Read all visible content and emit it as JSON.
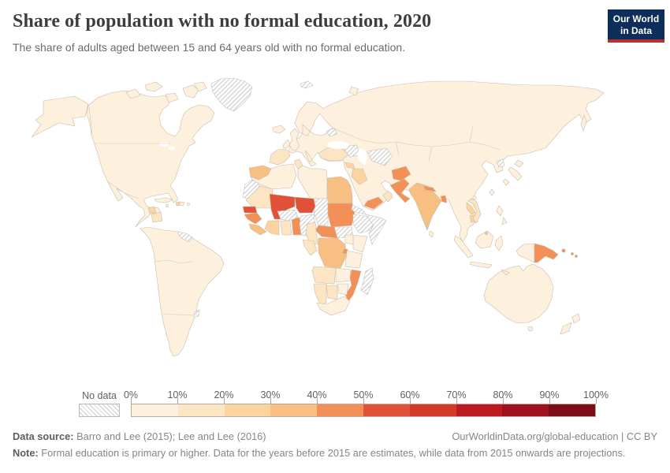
{
  "header": {
    "title": "Share of population with no formal education, 2020",
    "subtitle": "The share of adults aged between 15 and 64 years old with no formal education."
  },
  "logo": {
    "line1": "Our World",
    "line2": "in Data",
    "bg": "#0d2e5a",
    "accent": "#bc2f2c"
  },
  "legend": {
    "no_data_label": "No data",
    "tick_labels": [
      "0%",
      "10%",
      "20%",
      "30%",
      "40%",
      "50%",
      "60%",
      "70%",
      "80%",
      "90%",
      "100%"
    ],
    "palette": [
      "#fdf0dd",
      "#fce5c2",
      "#fbd49f",
      "#f8bf82",
      "#f29057",
      "#e05137",
      "#d23b28",
      "#bd1a21",
      "#9e121d",
      "#7d0c16"
    ],
    "hatch_line_color": "#cccccc",
    "hatch_border_color": "#bdbdbd"
  },
  "map": {
    "ocean_color": "#ffffff",
    "border_color": "#c9bcab",
    "regions": [
      {
        "id": "eurasia",
        "bin": 0
      },
      {
        "id": "north-america",
        "bin": 0
      },
      {
        "id": "alaska",
        "bin": 0
      },
      {
        "id": "south-america",
        "bin": 0
      },
      {
        "id": "australia",
        "bin": 0
      },
      {
        "id": "arctic-island-1",
        "bin": 0
      },
      {
        "id": "arctic-island-2",
        "bin": 0
      },
      {
        "id": "arctic-island-3",
        "bin": 0
      },
      {
        "id": "baffin-island",
        "bin": 0
      },
      {
        "id": "arctic-island-4",
        "bin": 0
      },
      {
        "id": "greenland",
        "bin": "nodata"
      },
      {
        "id": "iceland",
        "bin": 0
      },
      {
        "id": "great-britain",
        "bin": 0
      },
      {
        "id": "ireland",
        "bin": 0
      },
      {
        "id": "svalbard",
        "bin": "nodata"
      },
      {
        "id": "novaya-zemlya",
        "bin": 0
      },
      {
        "id": "iberia",
        "bin": 1
      },
      {
        "id": "belarus",
        "bin": "nodata"
      },
      {
        "id": "turkey",
        "bin": 1
      },
      {
        "id": "syria",
        "bin": 2
      },
      {
        "id": "iraq",
        "bin": 2
      },
      {
        "id": "caucasus",
        "bin": "nodata"
      },
      {
        "id": "turkmenistan-uzbekistan",
        "bin": "nodata"
      },
      {
        "id": "afghanistan",
        "bin": 4
      },
      {
        "id": "pakistan",
        "bin": 4
      },
      {
        "id": "india",
        "bin": 3
      },
      {
        "id": "nepal",
        "bin": 4
      },
      {
        "id": "bangladesh",
        "bin": 4
      },
      {
        "id": "sri-lanka",
        "bin": 0
      },
      {
        "id": "laos",
        "bin": 2
      },
      {
        "id": "cambodia",
        "bin": 2
      },
      {
        "id": "vietnam",
        "bin": 1
      },
      {
        "id": "north-korea",
        "bin": "nodata"
      },
      {
        "id": "japan-hokkaido",
        "bin": 0
      },
      {
        "id": "japan-honshu",
        "bin": 0
      },
      {
        "id": "japan-kyushu",
        "bin": 0
      },
      {
        "id": "sakhalin",
        "bin": 0
      },
      {
        "id": "taiwan",
        "bin": 0
      },
      {
        "id": "philippines-north",
        "bin": 0
      },
      {
        "id": "philippines-south",
        "bin": 0
      },
      {
        "id": "sumatra",
        "bin": 0
      },
      {
        "id": "java",
        "bin": 0
      },
      {
        "id": "borneo",
        "bin": 0
      },
      {
        "id": "sulawesi",
        "bin": 0
      },
      {
        "id": "lesser-sunda",
        "bin": 0
      },
      {
        "id": "west-new-guinea",
        "bin": 0
      },
      {
        "id": "papua-new-guinea",
        "bin": 4
      },
      {
        "id": "nz-north-island",
        "bin": 0
      },
      {
        "id": "nz-south-island",
        "bin": 0
      },
      {
        "id": "yemen",
        "bin": 4
      },
      {
        "id": "oman",
        "bin": 1
      },
      {
        "id": "morocco",
        "bin": 3
      },
      {
        "id": "western-sahara",
        "bin": "nodata"
      },
      {
        "id": "algeria",
        "bin": 0
      },
      {
        "id": "tunisia",
        "bin": 1
      },
      {
        "id": "libya",
        "bin": 0
      },
      {
        "id": "egypt",
        "bin": 3
      },
      {
        "id": "mauritania",
        "bin": 1
      },
      {
        "id": "mali",
        "bin": 5
      },
      {
        "id": "niger",
        "bin": 5
      },
      {
        "id": "senegal",
        "bin": 5
      },
      {
        "id": "guinea",
        "bin": 4
      },
      {
        "id": "sierra-leone-liberia",
        "bin": 3
      },
      {
        "id": "ivory-coast",
        "bin": 2
      },
      {
        "id": "ghana",
        "bin": 1
      },
      {
        "id": "togo-benin",
        "bin": 4
      },
      {
        "id": "burkina-faso",
        "bin": "nodata"
      },
      {
        "id": "nigeria",
        "bin": "nodata"
      },
      {
        "id": "chad",
        "bin": "nodata"
      },
      {
        "id": "sudan",
        "bin": 4
      },
      {
        "id": "south-sudan",
        "bin": "nodata"
      },
      {
        "id": "eritrea-djibouti",
        "bin": "nodata"
      },
      {
        "id": "ethiopia",
        "bin": "nodata"
      },
      {
        "id": "somalia",
        "bin": "nodata"
      },
      {
        "id": "kenya",
        "bin": 0
      },
      {
        "id": "uganda",
        "bin": 0
      },
      {
        "id": "central-african-republic",
        "bin": 4
      },
      {
        "id": "cameroon",
        "bin": 1
      },
      {
        "id": "congo-gabon",
        "bin": 1
      },
      {
        "id": "drc",
        "bin": 3
      },
      {
        "id": "rwanda-burundi",
        "bin": 4
      },
      {
        "id": "tanzania",
        "bin": 0
      },
      {
        "id": "angola",
        "bin": 1
      },
      {
        "id": "zambia",
        "bin": 0
      },
      {
        "id": "mozambique",
        "bin": 4
      },
      {
        "id": "madagascar",
        "bin": "nodata"
      },
      {
        "id": "zimbabwe",
        "bin": 0
      },
      {
        "id": "botswana",
        "bin": 1
      },
      {
        "id": "namibia",
        "bin": 1
      },
      {
        "id": "south-africa",
        "bin": 0
      },
      {
        "id": "cuba",
        "bin": 0
      },
      {
        "id": "haiti",
        "bin": 2
      },
      {
        "id": "dominican-republic",
        "bin": 0
      },
      {
        "id": "guatemala",
        "bin": 2
      },
      {
        "id": "honduras-nicaragua",
        "bin": 1
      },
      {
        "id": "guyana-suriname",
        "bin": "nodata"
      },
      {
        "id": "uruguay",
        "bin": "nodata"
      }
    ],
    "dot_regions": [
      {
        "id": "jamaica",
        "bin": 0
      },
      {
        "id": "puerto-rico",
        "bin": 0
      },
      {
        "id": "hainan",
        "bin": 0
      },
      {
        "id": "brunei",
        "bin": 3
      },
      {
        "id": "tasmania",
        "bin": 0
      },
      {
        "id": "new-britain",
        "bin": 4
      },
      {
        "id": "solomon-1",
        "bin": 4
      },
      {
        "id": "solomon-2",
        "bin": 4
      }
    ]
  },
  "chart_data": {
    "type": "heatmap",
    "subtype": "choropleth-world-map",
    "title": "Share of population with no formal education, 2020",
    "subtitle": "The share of adults aged between 15 and 64 years old with no formal education.",
    "unit": "%",
    "bins": [
      "0-10%",
      "10-20%",
      "20-30%",
      "30-40%",
      "40-50%",
      "50-60%",
      "60-70%",
      "70-80%",
      "80-90%",
      "90-100%"
    ],
    "legend_position": "bottom",
    "values_by_region_bin": {
      "Canada": "0-10%",
      "United States": "0-10%",
      "Mexico": "0-10%",
      "Brazil": "0-10%",
      "Argentina": "0-10%",
      "Europe": "0-10%",
      "Russia": "0-10%",
      "China": "0-10%",
      "Australia": "0-10%",
      "Spain/Portugal": "10-20%",
      "Turkey": "10-20%",
      "Guatemala": "20-30%",
      "Haiti": "20-30%",
      "Honduras/Nicaragua": "10-20%",
      "Morocco": "30-40%",
      "Egypt": "30-40%",
      "Mauritania": "10-20%",
      "Mali": "50-60%",
      "Niger": "50-60%",
      "Senegal": "50-60%",
      "Guinea": "40-50%",
      "Sierra Leone/Liberia": "30-40%",
      "Ivory Coast": "20-30%",
      "Ghana": "10-20%",
      "Togo/Benin": "40-50%",
      "Sudan": "40-50%",
      "Central African Republic": "40-50%",
      "DR Congo": "30-40%",
      "Rwanda/Burundi": "40-50%",
      "Mozambique": "40-50%",
      "Angola": "10-20%",
      "Namibia": "10-20%",
      "Botswana": "10-20%",
      "South Africa": "0-10%",
      "Kenya": "0-10%",
      "Tanzania": "0-10%",
      "Yemen": "40-50%",
      "Oman": "10-20%",
      "Iraq": "20-30%",
      "Syria": "20-30%",
      "Afghanistan": "40-50%",
      "Pakistan": "40-50%",
      "India": "30-40%",
      "Nepal": "40-50%",
      "Bangladesh": "40-50%",
      "Laos": "20-30%",
      "Cambodia": "20-30%",
      "Vietnam": "10-20%",
      "Papua New Guinea": "40-50%",
      "No data": [
        "Greenland",
        "Svalbard",
        "Western Sahara",
        "Burkina Faso",
        "Nigeria",
        "Chad",
        "South Sudan",
        "Eritrea/Djibouti",
        "Ethiopia",
        "Somalia",
        "Madagascar",
        "Belarus",
        "Caucasus",
        "Turkmenistan/Uzbekistan",
        "North Korea",
        "Guyana/Suriname",
        "Uruguay"
      ]
    }
  },
  "footer": {
    "datasource_label": "Data source:",
    "datasource_text": " Barro and Lee (2015); Lee and Lee (2016)",
    "link_text": "OurWorldinData.org/global-education | CC BY",
    "note_label": "Note:",
    "note_text": " Formal education is primary or higher. Data for the years before 2015 are estimates, while data from 2015 onwards are projections."
  }
}
